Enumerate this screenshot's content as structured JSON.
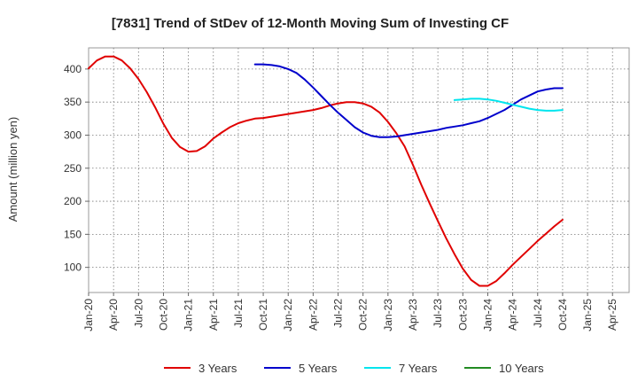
{
  "chart_data": {
    "type": "line",
    "title": "[7831]  Trend of StDev of 12-Month Moving Sum of Investing CF",
    "xlabel": "",
    "ylabel": "Amount (million yen)",
    "ylim": [
      62,
      432
    ],
    "yticks": [
      100,
      150,
      200,
      250,
      300,
      350,
      400
    ],
    "xticks": [
      "Jan-20",
      "Apr-20",
      "Jul-20",
      "Oct-20",
      "Jan-21",
      "Apr-21",
      "Jul-21",
      "Oct-21",
      "Jan-22",
      "Apr-22",
      "Jul-22",
      "Oct-22",
      "Jan-23",
      "Apr-23",
      "Jul-23",
      "Oct-23",
      "Jan-24",
      "Apr-24",
      "Jul-24",
      "Oct-24",
      "Jan-25",
      "Apr-25"
    ],
    "grid": true,
    "legend_position": "bottom",
    "series": [
      {
        "name": "3 Years",
        "color": "#e00000",
        "values": [
          [
            "2020-01",
            401
          ],
          [
            "2020-02",
            413
          ],
          [
            "2020-03",
            419
          ],
          [
            "2020-04",
            419
          ],
          [
            "2020-05",
            413
          ],
          [
            "2020-06",
            401
          ],
          [
            "2020-07",
            385
          ],
          [
            "2020-08",
            365
          ],
          [
            "2020-09",
            342
          ],
          [
            "2020-10",
            317
          ],
          [
            "2020-11",
            296
          ],
          [
            "2020-12",
            282
          ],
          [
            "2021-01",
            275
          ],
          [
            "2021-02",
            276
          ],
          [
            "2021-03",
            283
          ],
          [
            "2021-04",
            295
          ],
          [
            "2021-05",
            304
          ],
          [
            "2021-06",
            312
          ],
          [
            "2021-07",
            318
          ],
          [
            "2021-08",
            322
          ],
          [
            "2021-09",
            325
          ],
          [
            "2021-10",
            326
          ],
          [
            "2021-11",
            328
          ],
          [
            "2021-12",
            330
          ],
          [
            "2022-01",
            332
          ],
          [
            "2022-02",
            334
          ],
          [
            "2022-03",
            336
          ],
          [
            "2022-04",
            338
          ],
          [
            "2022-05",
            341
          ],
          [
            "2022-06",
            345
          ],
          [
            "2022-07",
            348
          ],
          [
            "2022-08",
            350
          ],
          [
            "2022-09",
            350
          ],
          [
            "2022-10",
            348
          ],
          [
            "2022-11",
            343
          ],
          [
            "2022-12",
            334
          ],
          [
            "2023-01",
            320
          ],
          [
            "2023-02",
            303
          ],
          [
            "2023-03",
            283
          ],
          [
            "2023-04",
            255
          ],
          [
            "2023-05",
            225
          ],
          [
            "2023-06",
            197
          ],
          [
            "2023-07",
            170
          ],
          [
            "2023-08",
            144
          ],
          [
            "2023-09",
            120
          ],
          [
            "2023-10",
            98
          ],
          [
            "2023-11",
            81
          ],
          [
            "2023-12",
            72
          ],
          [
            "2024-01",
            72
          ],
          [
            "2024-02",
            79
          ],
          [
            "2024-03",
            91
          ],
          [
            "2024-04",
            104
          ],
          [
            "2024-05",
            116
          ],
          [
            "2024-06",
            128
          ],
          [
            "2024-07",
            140
          ],
          [
            "2024-08",
            151
          ],
          [
            "2024-09",
            162
          ],
          [
            "2024-10",
            172
          ]
        ]
      },
      {
        "name": "5 Years",
        "color": "#0000cc",
        "values": [
          [
            "2021-09",
            407
          ],
          [
            "2021-10",
            407
          ],
          [
            "2021-11",
            406
          ],
          [
            "2021-12",
            404
          ],
          [
            "2022-01",
            400
          ],
          [
            "2022-02",
            394
          ],
          [
            "2022-03",
            384
          ],
          [
            "2022-04",
            372
          ],
          [
            "2022-05",
            359
          ],
          [
            "2022-06",
            346
          ],
          [
            "2022-07",
            334
          ],
          [
            "2022-08",
            323
          ],
          [
            "2022-09",
            312
          ],
          [
            "2022-10",
            304
          ],
          [
            "2022-11",
            299
          ],
          [
            "2022-12",
            297
          ],
          [
            "2023-01",
            297
          ],
          [
            "2023-02",
            298
          ],
          [
            "2023-03",
            300
          ],
          [
            "2023-04",
            302
          ],
          [
            "2023-05",
            304
          ],
          [
            "2023-06",
            306
          ],
          [
            "2023-07",
            308
          ],
          [
            "2023-08",
            311
          ],
          [
            "2023-09",
            313
          ],
          [
            "2023-10",
            315
          ],
          [
            "2023-11",
            318
          ],
          [
            "2023-12",
            321
          ],
          [
            "2024-01",
            326
          ],
          [
            "2024-02",
            332
          ],
          [
            "2024-03",
            338
          ],
          [
            "2024-04",
            346
          ],
          [
            "2024-05",
            354
          ],
          [
            "2024-06",
            360
          ],
          [
            "2024-07",
            366
          ],
          [
            "2024-08",
            369
          ],
          [
            "2024-09",
            371
          ],
          [
            "2024-10",
            371
          ]
        ]
      },
      {
        "name": "7 Years",
        "color": "#00e5ee",
        "values": [
          [
            "2023-09",
            353
          ],
          [
            "2023-10",
            354
          ],
          [
            "2023-11",
            355
          ],
          [
            "2023-12",
            355
          ],
          [
            "2024-01",
            354
          ],
          [
            "2024-02",
            352
          ],
          [
            "2024-03",
            349
          ],
          [
            "2024-04",
            346
          ],
          [
            "2024-05",
            343
          ],
          [
            "2024-06",
            340
          ],
          [
            "2024-07",
            338
          ],
          [
            "2024-08",
            337
          ],
          [
            "2024-09",
            337
          ],
          [
            "2024-10",
            338
          ]
        ]
      },
      {
        "name": "10 Years",
        "color": "#228b22",
        "values": []
      }
    ]
  }
}
